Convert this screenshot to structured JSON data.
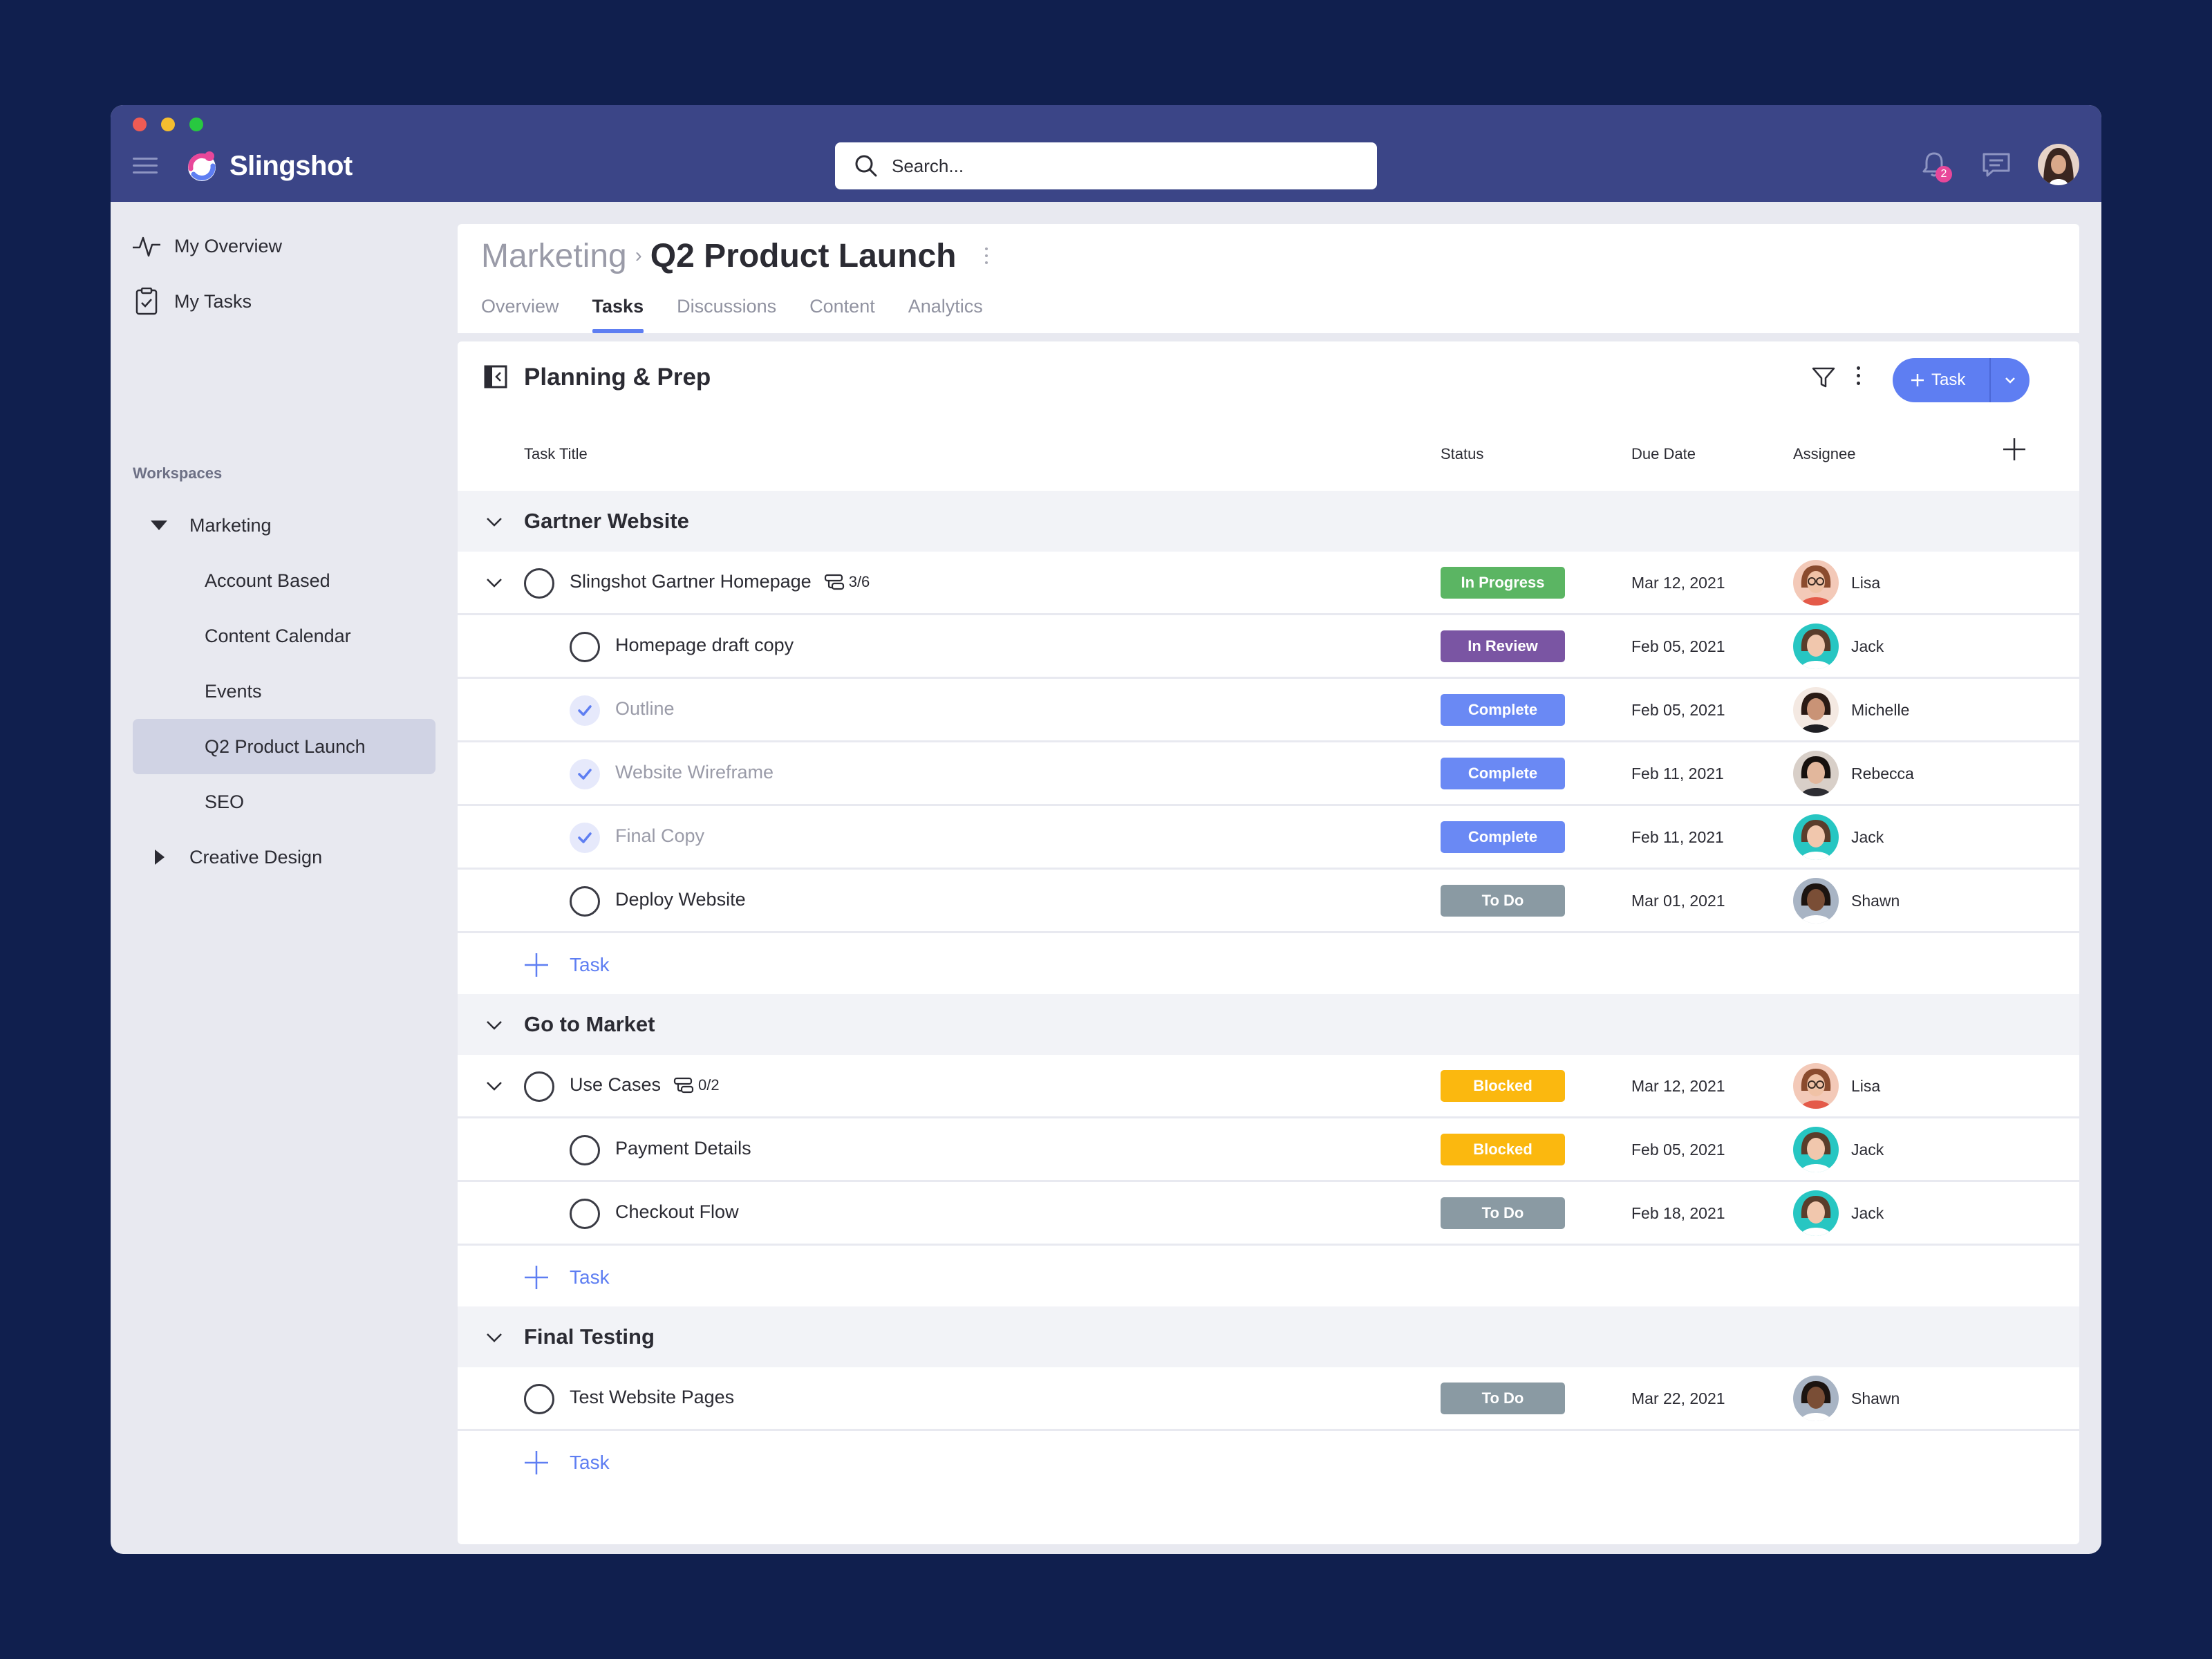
{
  "app": {
    "name": "Slingshot",
    "notification_count": "2"
  },
  "search": {
    "placeholder": "Search..."
  },
  "sidebar": {
    "nav": [
      {
        "label": "My Overview",
        "icon": "activity-icon"
      },
      {
        "label": "My Tasks",
        "icon": "clipboard-check-icon"
      }
    ],
    "workspaces_label": "Workspaces",
    "workspaces": [
      {
        "label": "Marketing",
        "expanded": true,
        "children": [
          "Account Based",
          "Content Calendar",
          "Events",
          "Q2 Product Launch",
          "SEO"
        ],
        "active": "Q2 Product Launch"
      },
      {
        "label": "Creative Design",
        "expanded": false
      }
    ]
  },
  "header": {
    "breadcrumb_parent": "Marketing",
    "title": "Q2 Product Launch",
    "tabs": [
      "Overview",
      "Tasks",
      "Discussions",
      "Content",
      "Analytics"
    ],
    "active_tab": "Tasks"
  },
  "section": {
    "title": "Planning & Prep",
    "add_task_label": "Task",
    "columns": {
      "task": "Task Title",
      "status": "Status",
      "due": "Due Date",
      "assignee": "Assignee"
    }
  },
  "status_colors": {
    "In Progress": "#5bb563",
    "In Review": "#7a55a3",
    "Complete": "#6a89f4",
    "To Do": "#8a9aa3",
    "Blocked": "#fbb80f"
  },
  "groups": [
    {
      "title": "Gartner Website",
      "tasks": [
        {
          "title": "Slingshot Gartner Homepage",
          "subtasks": "3/6",
          "status": "In Progress",
          "due": "Mar 12, 2021",
          "assignee": "Lisa",
          "level": 0,
          "done": false
        },
        {
          "title": "Homepage draft copy",
          "status": "In Review",
          "due": "Feb 05, 2021",
          "assignee": "Jack",
          "level": 1,
          "done": false
        },
        {
          "title": "Outline",
          "status": "Complete",
          "due": "Feb 05, 2021",
          "assignee": "Michelle",
          "level": 1,
          "done": true
        },
        {
          "title": "Website Wireframe",
          "status": "Complete",
          "due": "Feb 11, 2021",
          "assignee": "Rebecca",
          "level": 1,
          "done": true
        },
        {
          "title": "Final Copy",
          "status": "Complete",
          "due": "Feb 11, 2021",
          "assignee": "Jack",
          "level": 1,
          "done": true
        },
        {
          "title": "Deploy Website",
          "status": "To Do",
          "due": "Mar 01, 2021",
          "assignee": "Shawn",
          "level": 1,
          "done": false
        }
      ],
      "add_label": "Task"
    },
    {
      "title": "Go to Market",
      "tasks": [
        {
          "title": "Use Cases",
          "subtasks": "0/2",
          "status": "Blocked",
          "due": "Mar 12, 2021",
          "assignee": "Lisa",
          "level": 0,
          "done": false
        },
        {
          "title": "Payment Details",
          "status": "Blocked",
          "due": "Feb 05, 2021",
          "assignee": "Jack",
          "level": 1,
          "done": false
        },
        {
          "title": "Checkout Flow",
          "status": "To Do",
          "due": "Feb 18, 2021",
          "assignee": "Jack",
          "level": 1,
          "done": false
        }
      ],
      "add_label": "Task"
    },
    {
      "title": "Final Testing",
      "tasks": [
        {
          "title": "Test Website Pages",
          "status": "To Do",
          "due": "Mar 22, 2021",
          "assignee": "Shawn",
          "level": 0,
          "done": false,
          "no_chevron": true
        }
      ],
      "add_label": "Task"
    }
  ]
}
